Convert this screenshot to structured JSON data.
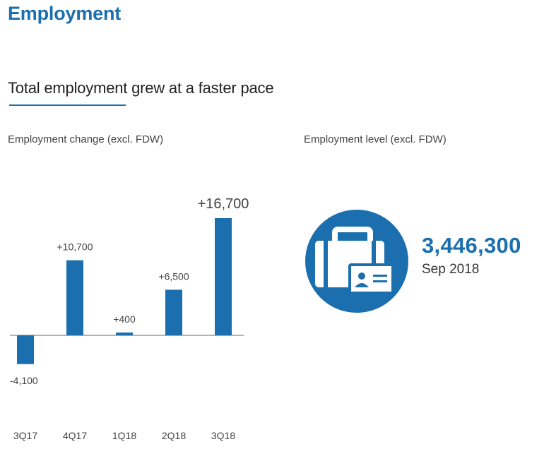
{
  "header": {
    "title": "Employment"
  },
  "section": {
    "subtitle": "Total employment grew at a faster pace"
  },
  "change_panel": {
    "label": "Employment change (excl. FDW)"
  },
  "level_panel": {
    "label": "Employment level (excl. FDW)",
    "value": "3,446,300",
    "date": "Sep 2018",
    "icon": "briefcase-with-id-card-icon"
  },
  "colors": {
    "accent": "#1b6fae",
    "axis": "#999999",
    "text": "#333333"
  },
  "chart_data": {
    "type": "bar",
    "categories": [
      "3Q17",
      "4Q17",
      "1Q18",
      "2Q18",
      "3Q18"
    ],
    "values": [
      -4100,
      10700,
      400,
      6500,
      16700
    ],
    "data_labels": [
      "-4,100",
      "+10,700",
      "+400",
      "+6,500",
      "+16,700"
    ],
    "ylim": [
      -4100,
      16700
    ],
    "grid": false,
    "legend": "none"
  }
}
